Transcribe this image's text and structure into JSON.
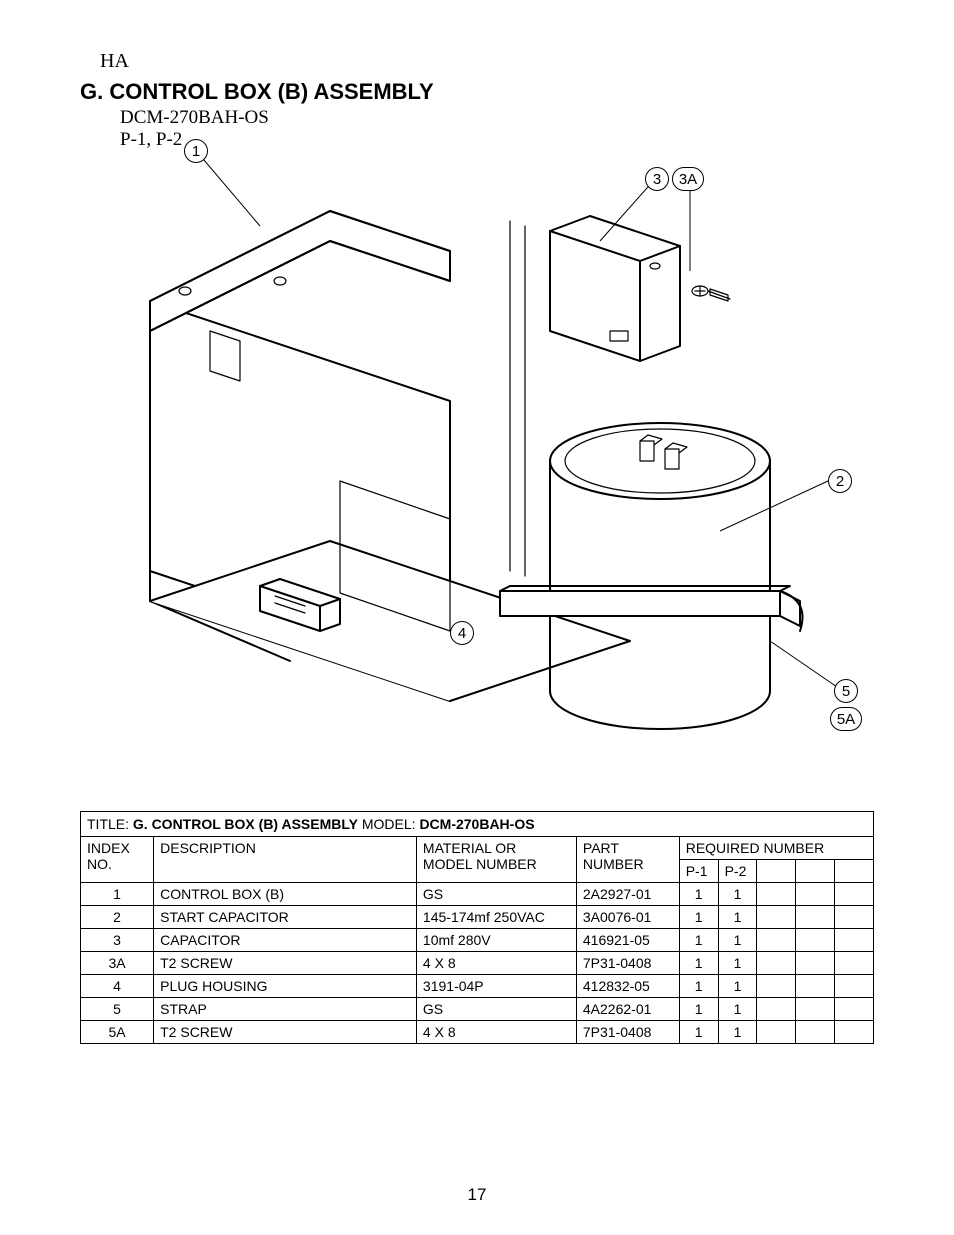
{
  "header": {
    "ha": "HA",
    "title": "G. CONTROL BOX (B) ASSEMBLY",
    "model": "DCM-270BAH-OS",
    "variants": "P-1,  P-2"
  },
  "callouts": {
    "c1": "1",
    "c2": "2",
    "c3": "3",
    "c3a": "3A",
    "c4": "4",
    "c5": "5",
    "c5a": "5A"
  },
  "table": {
    "title_prefix": "TITLE: ",
    "title_bold": "G. CONTROL BOX (B) ASSEMBLY",
    "model_prefix": "  MODEL: ",
    "model_bold": "DCM-270BAH-OS",
    "headers": {
      "index1": "INDEX",
      "index2": "NO.",
      "desc": "DESCRIPTION",
      "mat1": "MATERIAL OR",
      "mat2": "MODEL NUMBER",
      "part1": "PART",
      "part2": "NUMBER",
      "req": "REQUIRED NUMBER",
      "p1": "P-1",
      "p2": "P-2"
    },
    "rows": [
      {
        "idx": "1",
        "desc": "CONTROL BOX (B)",
        "mat": "GS",
        "part": "2A2927-01",
        "p1": "1",
        "p2": "1"
      },
      {
        "idx": "2",
        "desc": "START CAPACITOR",
        "mat": "145-174mf  250VAC",
        "part": "3A0076-01",
        "p1": "1",
        "p2": "1"
      },
      {
        "idx": "3",
        "desc": "CAPACITOR",
        "mat": "10mf    280V",
        "part": "416921-05",
        "p1": "1",
        "p2": "1"
      },
      {
        "idx": "3A",
        "desc": "T2 SCREW",
        "mat": "4 X 8",
        "part": "7P31-0408",
        "p1": "1",
        "p2": "1"
      },
      {
        "idx": "4",
        "desc": "PLUG HOUSING",
        "mat": "3191-04P",
        "part": "412832-05",
        "p1": "1",
        "p2": "1"
      },
      {
        "idx": "5",
        "desc": "STRAP",
        "mat": "GS",
        "part": "4A2262-01",
        "p1": "1",
        "p2": "1"
      },
      {
        "idx": "5A",
        "desc": "T2 SCREW",
        "mat": "4 X 8",
        "part": "7P31-0408",
        "p1": "1",
        "p2": "1"
      }
    ]
  },
  "page_number": "17",
  "style": {
    "background": "#ffffff",
    "stroke": "#000000",
    "callout_fill": "#ffffff",
    "font_body": "Arial",
    "font_serif": "Times New Roman"
  }
}
